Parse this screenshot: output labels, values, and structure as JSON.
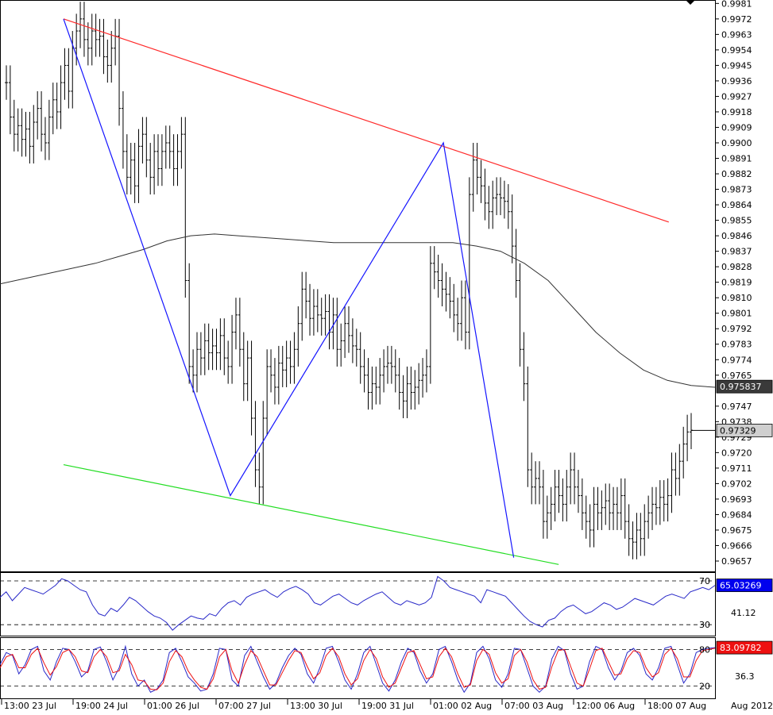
{
  "chart_data": [
    {
      "type": "line",
      "panel": "price",
      "price_axis": {
        "ticks": [
          0.9981,
          0.9972,
          0.9963,
          0.9954,
          0.9945,
          0.9936,
          0.9927,
          0.9918,
          0.9909,
          0.99,
          0.9891,
          0.9882,
          0.9873,
          0.9864,
          0.9855,
          0.9846,
          0.9837,
          0.9828,
          0.9819,
          0.981,
          0.9801,
          0.9792,
          0.9783,
          0.9774,
          0.9765,
          0.9747,
          0.9738,
          0.9729,
          0.972,
          0.9711,
          0.9702,
          0.9693,
          0.9684,
          0.9675,
          0.9666,
          0.9657
        ],
        "ylim": [
          0.9651,
          0.9983
        ]
      },
      "price_labels": [
        {
          "text": "0.975837",
          "value": 0.975837,
          "color": "#3a3a3a"
        },
        {
          "text": "0.97329",
          "value": 0.97329,
          "color": "#cfcfcf"
        }
      ],
      "time_axis": {
        "labels": [
          "13:00 23 Jul",
          "19:00 24 Jul",
          "01:00 26 Jul",
          "07:00 27 Jul",
          "13:00 30 Jul",
          "19:00 31 Jul",
          "01:00 02 Aug",
          "07:00 03 Aug",
          "12:00 06 Aug",
          "18:00 07 Aug"
        ],
        "right_label": "Aug 2012"
      },
      "bar_series": [
        0.9935,
        0.9915,
        0.9905,
        0.991,
        0.9902,
        0.9908,
        0.9898,
        0.9912,
        0.992,
        0.9905,
        0.99,
        0.9915,
        0.9925,
        0.9918,
        0.9935,
        0.9945,
        0.993,
        0.9955,
        0.9965,
        0.9972,
        0.996,
        0.9955,
        0.9965,
        0.996,
        0.9962,
        0.995,
        0.9945,
        0.9955,
        0.9962,
        0.992,
        0.9895,
        0.988,
        0.989,
        0.9875,
        0.9898,
        0.9905,
        0.989,
        0.988,
        0.9895,
        0.9885,
        0.9895,
        0.99,
        0.9895,
        0.9885,
        0.9895,
        0.9905,
        0.982,
        0.977,
        0.9765,
        0.978,
        0.9775,
        0.9785,
        0.9778,
        0.9782,
        0.9778,
        0.9788,
        0.9775,
        0.977,
        0.979,
        0.98,
        0.978,
        0.976,
        0.9775,
        0.974,
        0.971,
        0.97,
        0.974,
        0.977,
        0.9765,
        0.9758,
        0.9772,
        0.9768,
        0.9775,
        0.977,
        0.978,
        0.9795,
        0.9815,
        0.9808,
        0.9798,
        0.9805,
        0.98,
        0.9798,
        0.9802,
        0.979,
        0.98,
        0.978,
        0.9785,
        0.9795,
        0.9788,
        0.9782,
        0.978,
        0.977,
        0.9765,
        0.9755,
        0.976,
        0.9758,
        0.9765,
        0.977,
        0.9772,
        0.977,
        0.9765,
        0.9755,
        0.975,
        0.976,
        0.9755,
        0.9758,
        0.9762,
        0.9765,
        0.977,
        0.983,
        0.9825,
        0.982,
        0.9815,
        0.9812,
        0.9808,
        0.98,
        0.9795,
        0.981,
        0.979,
        0.987,
        0.989,
        0.988,
        0.9875,
        0.9865,
        0.986,
        0.9868,
        0.987,
        0.9868,
        0.9866,
        0.986,
        0.984,
        0.982,
        0.978,
        0.976,
        0.971,
        0.97,
        0.9705,
        0.97,
        0.968,
        0.9685,
        0.969,
        0.97,
        0.9695,
        0.969,
        0.97,
        0.971,
        0.97,
        0.9695,
        0.9685,
        0.968,
        0.9675,
        0.969,
        0.9685,
        0.9688,
        0.9692,
        0.9685,
        0.969,
        0.9685,
        0.9695,
        0.968,
        0.967,
        0.9668,
        0.9675,
        0.967,
        0.968,
        0.9685,
        0.969,
        0.9688,
        0.9694,
        0.969,
        0.9695,
        0.971,
        0.9705,
        0.9715,
        0.9725,
        0.9732,
        0.9733
      ],
      "moving_average": [
        0.9818,
        0.9821,
        0.9824,
        0.9827,
        0.983,
        0.9834,
        0.9838,
        0.9843,
        0.9846,
        0.9847,
        0.9846,
        0.9845,
        0.9844,
        0.9843,
        0.9842,
        0.9842,
        0.9842,
        0.9842,
        0.9842,
        0.9842,
        0.984,
        0.9837,
        0.983,
        0.982,
        0.9805,
        0.979,
        0.9778,
        0.9768,
        0.9762,
        0.9759,
        0.9758
      ],
      "trendlines": [
        {
          "name": "upper-channel",
          "color": "#ff2a2a",
          "x": [
            0.0,
            0.929
          ],
          "y": [
            0.9972,
            0.9854
          ]
        },
        {
          "name": "lower-channel",
          "color": "#22dd22",
          "x": [
            0.0,
            0.76
          ],
          "y": [
            0.9713,
            0.9655
          ]
        }
      ],
      "zigzag": {
        "color": "#1414ff",
        "x": [
          0.0,
          0.256,
          0.583,
          0.691
        ],
        "y": [
          0.9972,
          0.9695,
          0.99,
          0.9659
        ]
      }
    },
    {
      "type": "line",
      "panel": "rsi",
      "levels": [
        70,
        30
      ],
      "level_labels": [
        "70",
        "30"
      ],
      "value_label": "65.03269",
      "value_color": "#0000ee",
      "second_label": "41.12",
      "ylim": [
        20,
        78
      ],
      "series": [
        {
          "color": "#2828c8",
          "values": [
            55,
            60,
            52,
            58,
            64,
            62,
            60,
            58,
            62,
            66,
            72,
            70,
            66,
            62,
            60,
            48,
            40,
            38,
            45,
            42,
            48,
            55,
            52,
            47,
            42,
            38,
            36,
            32,
            25,
            30,
            34,
            38,
            36,
            35,
            40,
            38,
            45,
            50,
            52,
            48,
            55,
            58,
            60,
            62,
            58,
            55,
            60,
            63,
            65,
            62,
            58,
            50,
            48,
            52,
            56,
            58,
            54,
            50,
            48,
            52,
            55,
            58,
            60,
            55,
            50,
            48,
            52,
            50,
            48,
            50,
            55,
            74,
            70,
            64,
            62,
            60,
            58,
            56,
            50,
            62,
            60,
            58,
            56,
            50,
            44,
            38,
            33,
            30,
            28,
            34,
            36,
            42,
            46,
            48,
            44,
            40,
            42,
            46,
            50,
            48,
            44,
            46,
            50,
            54,
            52,
            50,
            48,
            52,
            56,
            58,
            56,
            54,
            60,
            62,
            64,
            62,
            66
          ]
        }
      ]
    },
    {
      "type": "line",
      "panel": "stochastic",
      "levels": [
        80,
        20
      ],
      "level_labels": [
        "80",
        "20"
      ],
      "value_label": "83.09782",
      "value_color": "#ee1010",
      "second_label": "36.3",
      "ylim": [
        0,
        100
      ],
      "series": [
        {
          "color": "#2828c8",
          "values": [
            55,
            75,
            70,
            40,
            55,
            80,
            85,
            45,
            30,
            60,
            82,
            80,
            60,
            35,
            45,
            80,
            84,
            60,
            30,
            50,
            85,
            40,
            20,
            30,
            10,
            15,
            30,
            75,
            82,
            60,
            35,
            25,
            12,
            15,
            40,
            82,
            80,
            30,
            20,
            70,
            85,
            60,
            35,
            15,
            25,
            50,
            70,
            82,
            72,
            40,
            25,
            50,
            82,
            85,
            60,
            30,
            15,
            40,
            75,
            85,
            55,
            25,
            12,
            30,
            60,
            82,
            75,
            45,
            25,
            40,
            80,
            85,
            60,
            30,
            10,
            25,
            75,
            85,
            65,
            30,
            18,
            40,
            82,
            80,
            50,
            20,
            10,
            20,
            65,
            85,
            78,
            40,
            15,
            20,
            60,
            85,
            80,
            50,
            30,
            45,
            75,
            82,
            70,
            40,
            30,
            50,
            82,
            85,
            55,
            25,
            40,
            75,
            80,
            82,
            83
          ]
        },
        {
          "color": "#ee1010",
          "values": [
            50,
            68,
            72,
            50,
            50,
            72,
            82,
            58,
            38,
            52,
            75,
            80,
            68,
            45,
            42,
            68,
            80,
            68,
            42,
            45,
            72,
            55,
            30,
            28,
            15,
            14,
            25,
            60,
            78,
            68,
            45,
            30,
            18,
            15,
            32,
            68,
            80,
            45,
            25,
            55,
            78,
            68,
            45,
            22,
            22,
            42,
            62,
            78,
            75,
            52,
            32,
            42,
            70,
            82,
            68,
            40,
            22,
            32,
            62,
            80,
            65,
            35,
            18,
            25,
            50,
            75,
            78,
            55,
            32,
            35,
            68,
            82,
            68,
            40,
            18,
            22,
            62,
            80,
            72,
            42,
            25,
            32,
            70,
            80,
            60,
            30,
            15,
            18,
            52,
            78,
            80,
            52,
            25,
            20,
            48,
            78,
            82,
            60,
            38,
            40,
            65,
            78,
            75,
            50,
            35,
            42,
            72,
            82,
            65,
            35,
            35,
            62,
            78,
            80,
            82
          ]
        }
      ]
    }
  ]
}
